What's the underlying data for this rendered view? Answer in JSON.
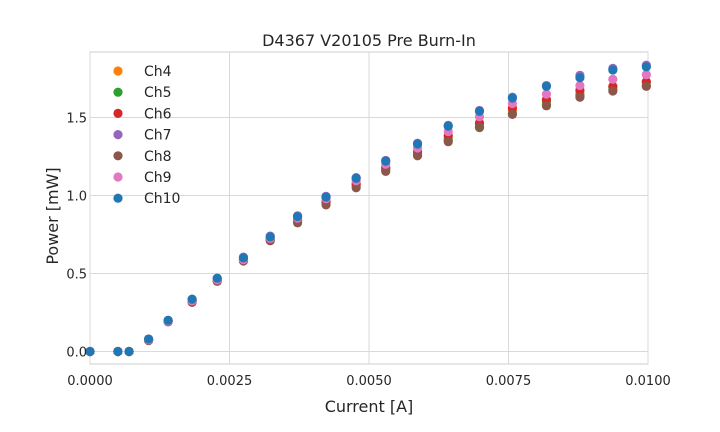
{
  "chart_data": {
    "type": "scatter",
    "title": "D4367 V20105 Pre Burn-In",
    "xlabel": "Current [A]",
    "ylabel": "Power [mW]",
    "xlim": [
      0.0,
      0.01
    ],
    "ylim": [
      -0.08,
      1.92
    ],
    "x_ticks": [
      0.0,
      0.0025,
      0.005,
      0.0075,
      0.01
    ],
    "x_tick_labels": [
      "0.0000",
      "0.0025",
      "0.0050",
      "0.0075",
      "0.0100"
    ],
    "y_ticks": [
      0.0,
      0.5,
      1.0,
      1.5
    ],
    "y_tick_labels": [
      "0.0",
      "0.5",
      "1.0",
      "1.5"
    ],
    "grid": true,
    "legend_position": "top-left",
    "x": [
      0.0,
      0.0005,
      0.0007,
      0.00105,
      0.0014,
      0.00183,
      0.00228,
      0.00275,
      0.00323,
      0.00372,
      0.00423,
      0.00477,
      0.0053,
      0.00587,
      0.00642,
      0.00698,
      0.00757,
      0.00818,
      0.00878,
      0.00937,
      0.00997
    ],
    "series": [
      {
        "name": "Ch4",
        "color": "#ff7f0e",
        "values": [
          0.0,
          0.0,
          0.0,
          0.075,
          0.195,
          0.325,
          0.455,
          0.59,
          0.72,
          0.845,
          0.96,
          1.075,
          1.175,
          1.27,
          1.37,
          1.46,
          1.545,
          1.605,
          1.655,
          1.695,
          1.725
        ]
      },
      {
        "name": "Ch5",
        "color": "#2ca02c",
        "values": [
          0.0,
          0.0,
          0.0,
          0.075,
          0.195,
          0.325,
          0.455,
          0.585,
          0.715,
          0.84,
          0.955,
          1.065,
          1.165,
          1.26,
          1.355,
          1.435,
          1.525,
          1.585,
          1.64,
          1.68,
          1.705
        ]
      },
      {
        "name": "Ch6",
        "color": "#d62728",
        "values": [
          0.0,
          0.0,
          0.0,
          0.075,
          0.195,
          0.325,
          0.455,
          0.59,
          0.72,
          0.845,
          0.96,
          1.075,
          1.18,
          1.28,
          1.385,
          1.465,
          1.56,
          1.615,
          1.675,
          1.7,
          1.73
        ]
      },
      {
        "name": "Ch7",
        "color": "#9467bd",
        "values": [
          0.0,
          0.0,
          0.0,
          0.08,
          0.2,
          0.335,
          0.47,
          0.605,
          0.74,
          0.87,
          0.995,
          1.115,
          1.225,
          1.335,
          1.45,
          1.545,
          1.63,
          1.705,
          1.77,
          1.815,
          1.835
        ]
      },
      {
        "name": "Ch8",
        "color": "#8c564b",
        "values": [
          0.0,
          0.0,
          0.0,
          0.07,
          0.19,
          0.315,
          0.45,
          0.58,
          0.71,
          0.825,
          0.94,
          1.05,
          1.155,
          1.255,
          1.345,
          1.44,
          1.52,
          1.575,
          1.63,
          1.67,
          1.7
        ]
      },
      {
        "name": "Ch9",
        "color": "#e377c2",
        "values": [
          0.0,
          0.0,
          0.0,
          0.075,
          0.195,
          0.325,
          0.46,
          0.59,
          0.725,
          0.855,
          0.98,
          1.095,
          1.2,
          1.305,
          1.41,
          1.505,
          1.59,
          1.65,
          1.705,
          1.745,
          1.775
        ]
      },
      {
        "name": "Ch10",
        "color": "#1f77b4",
        "values": [
          0.0,
          0.0,
          0.0,
          0.08,
          0.2,
          0.335,
          0.47,
          0.6,
          0.735,
          0.865,
          0.99,
          1.11,
          1.22,
          1.33,
          1.445,
          1.54,
          1.625,
          1.7,
          1.755,
          1.805,
          1.825
        ]
      }
    ]
  }
}
